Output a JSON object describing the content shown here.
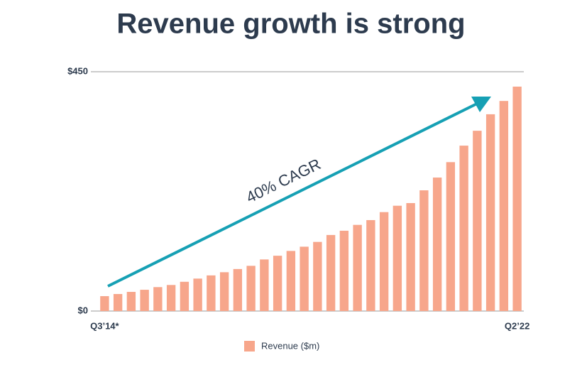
{
  "chart_data": {
    "type": "bar",
    "title": "Revenue growth is strong",
    "annotation": "40% CAGR",
    "categories": [
      "Q3’14*",
      null,
      null,
      null,
      null,
      null,
      null,
      null,
      null,
      null,
      null,
      null,
      null,
      null,
      null,
      null,
      null,
      null,
      null,
      null,
      null,
      null,
      null,
      null,
      null,
      null,
      null,
      null,
      null,
      null,
      null,
      "Q2’22"
    ],
    "series": [
      {
        "name": "Revenue ($m)",
        "color": "#f7a68b",
        "values": [
          28,
          32,
          36,
          40,
          45,
          49,
          55,
          61,
          67,
          73,
          79,
          85,
          97,
          104,
          113,
          121,
          130,
          143,
          151,
          162,
          171,
          186,
          198,
          203,
          227,
          251,
          280,
          311,
          339,
          370,
          395,
          422
        ]
      }
    ],
    "ylim": [
      0,
      450
    ],
    "yticks": [
      {
        "value": 0,
        "label": "$0"
      },
      {
        "value": 450,
        "label": "$450"
      }
    ],
    "grid": true
  }
}
